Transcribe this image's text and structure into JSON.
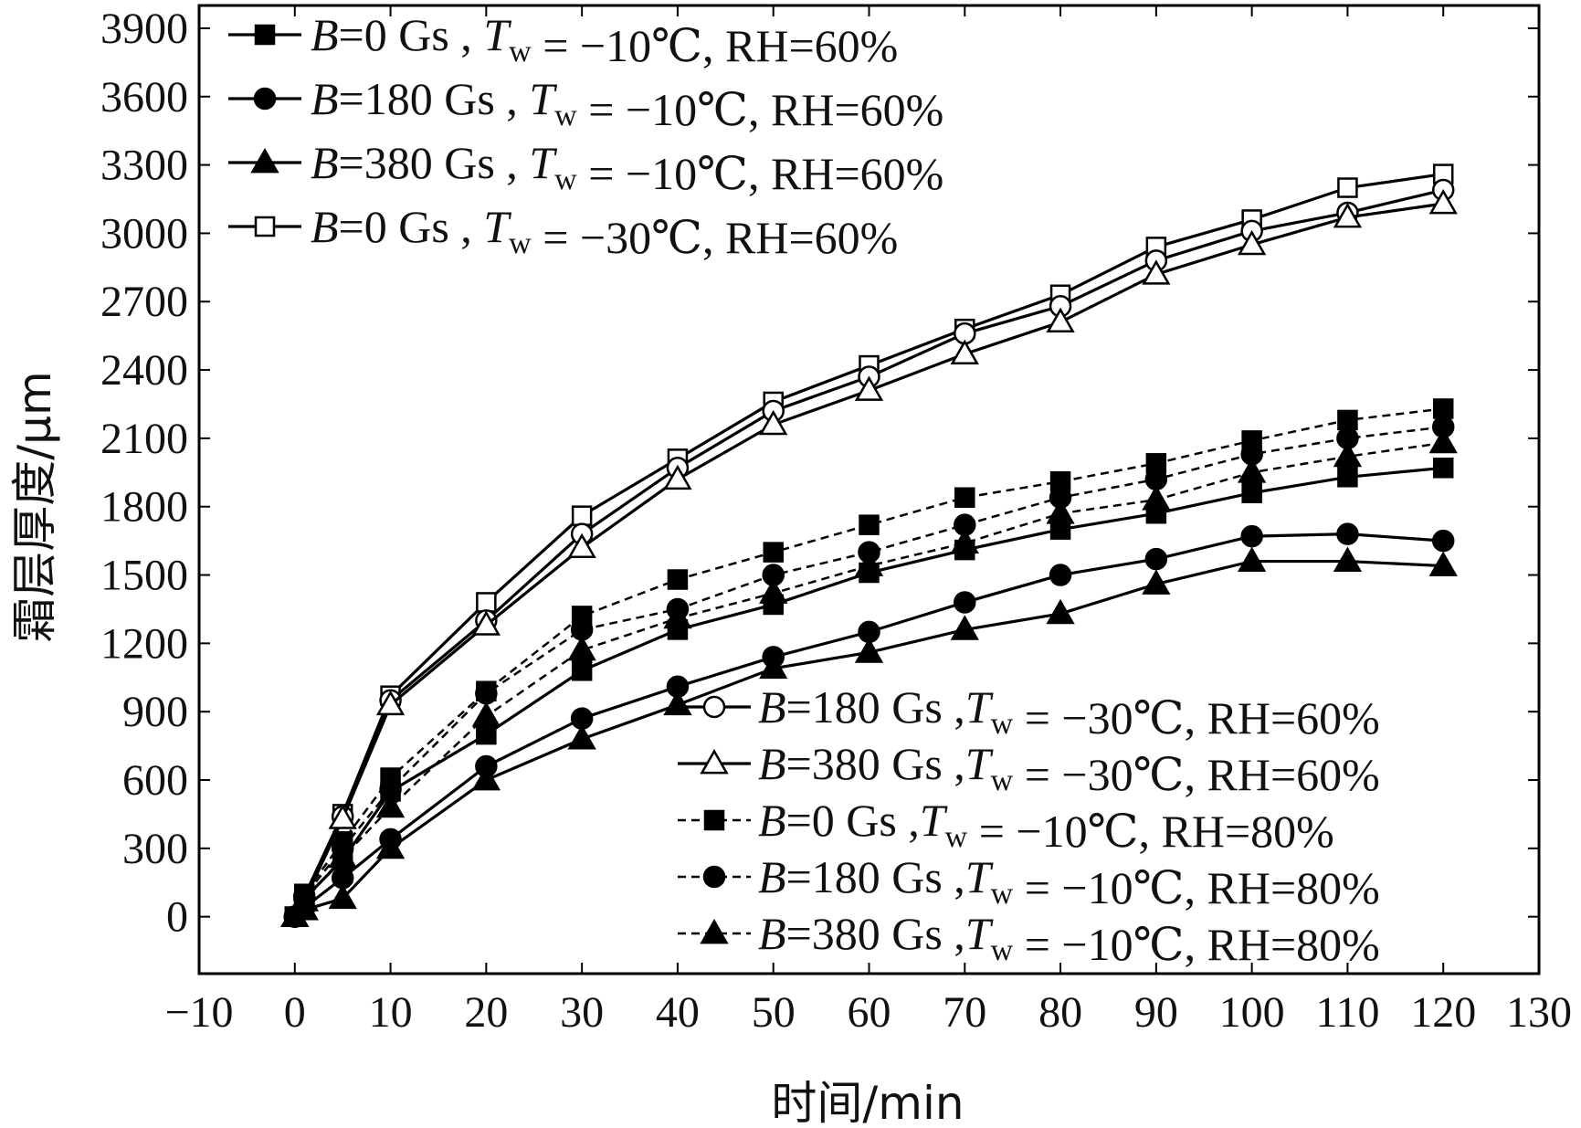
{
  "chart_data": {
    "type": "line",
    "title": "",
    "xlabel": "时间/min",
    "ylabel": "霜层厚度/μm",
    "xlim": [
      -10,
      130
    ],
    "ylim": [
      -250,
      4000
    ],
    "xticks": [
      -10,
      0,
      10,
      20,
      30,
      40,
      50,
      60,
      70,
      80,
      90,
      100,
      110,
      120,
      130
    ],
    "xtick_labels": [
      "−10",
      "0",
      "10",
      "20",
      "30",
      "40",
      "50",
      "60",
      "70",
      "80",
      "90",
      "100",
      "110",
      "120",
      "130"
    ],
    "yticks": [
      0,
      300,
      600,
      900,
      1200,
      1500,
      1800,
      2100,
      2400,
      2700,
      3000,
      3300,
      3600,
      3900
    ],
    "ytick_labels": [
      "0",
      "300",
      "600",
      "900",
      "1200",
      "1500",
      "1800",
      "2100",
      "2400",
      "2700",
      "3000",
      "3300",
      "3600",
      "3900"
    ],
    "legend_groups": [
      {
        "placement": "top-left",
        "series_indices": [
          0,
          1,
          2,
          3
        ]
      },
      {
        "placement": "bottom-right",
        "series_indices": [
          4,
          5,
          6,
          7,
          8
        ]
      }
    ],
    "series": [
      {
        "name": "B=0 Gs , Tw = −10℃, RH=60%",
        "legend": {
          "b": "B",
          "mid": "=0 Gs , ",
          "t": "T",
          "w": "w",
          "rest": " = −10℃, RH=60%"
        },
        "marker": "square",
        "fill": "filled",
        "dash": false,
        "x": [
          0,
          1,
          5,
          10,
          20,
          30,
          40,
          50,
          60,
          70,
          80,
          90,
          100,
          110,
          120
        ],
        "y": [
          0,
          80,
          250,
          550,
          800,
          1080,
          1260,
          1370,
          1510,
          1610,
          1700,
          1770,
          1860,
          1930,
          1970
        ]
      },
      {
        "name": "B=180 Gs , Tw = −10℃, RH=60%",
        "legend": {
          "b": "B",
          "mid": "=180 Gs , ",
          "t": "T",
          "w": "w",
          "rest": " = −10℃, RH=60%"
        },
        "marker": "circle",
        "fill": "filled",
        "dash": false,
        "x": [
          0,
          1,
          5,
          10,
          20,
          30,
          40,
          50,
          60,
          70,
          80,
          90,
          100,
          110,
          120
        ],
        "y": [
          0,
          40,
          170,
          340,
          660,
          870,
          1010,
          1140,
          1250,
          1380,
          1500,
          1570,
          1670,
          1680,
          1650
        ]
      },
      {
        "name": "B=380 Gs , Tw = −10℃, RH=60%",
        "legend": {
          "b": "B",
          "mid": "=380 Gs , ",
          "t": "T",
          "w": "w",
          "rest": " = −10℃, RH=60%"
        },
        "marker": "triangle",
        "fill": "filled",
        "dash": false,
        "x": [
          0,
          1,
          5,
          10,
          20,
          30,
          40,
          50,
          60,
          70,
          80,
          90,
          100,
          110,
          120
        ],
        "y": [
          0,
          30,
          80,
          300,
          600,
          780,
          930,
          1090,
          1160,
          1260,
          1330,
          1460,
          1560,
          1560,
          1540
        ]
      },
      {
        "name": "B=0 Gs , Tw = −30℃, RH=60%",
        "legend": {
          "b": "B",
          "mid": "=0 Gs , ",
          "t": "T",
          "w": "w",
          "rest": " = −30℃, RH=60%"
        },
        "marker": "square",
        "fill": "open",
        "dash": false,
        "x": [
          0,
          1,
          5,
          10,
          20,
          30,
          40,
          50,
          60,
          70,
          80,
          90,
          100,
          110,
          120
        ],
        "y": [
          0,
          90,
          450,
          970,
          1380,
          1760,
          2010,
          2260,
          2420,
          2580,
          2730,
          2940,
          3060,
          3200,
          3260
        ]
      },
      {
        "name": "B=180 Gs ,Tw = −30℃, RH=60%",
        "legend": {
          "b": "B",
          "mid": "=180 Gs ,",
          "t": "T",
          "w": "w",
          "rest": " = −30℃, RH=60%"
        },
        "marker": "circle",
        "fill": "open",
        "dash": false,
        "x": [
          0,
          1,
          5,
          10,
          20,
          30,
          40,
          50,
          60,
          70,
          80,
          90,
          100,
          110,
          120
        ],
        "y": [
          0,
          80,
          440,
          950,
          1300,
          1680,
          1970,
          2220,
          2370,
          2560,
          2680,
          2880,
          3010,
          3090,
          3190
        ]
      },
      {
        "name": "B=380 Gs ,Tw = −30℃, RH=60%",
        "legend": {
          "b": "B",
          "mid": "=380 Gs ,",
          "t": "T",
          "w": "w",
          "rest": " = −30℃, RH=60%"
        },
        "marker": "triangle",
        "fill": "open",
        "dash": false,
        "x": [
          0,
          1,
          5,
          10,
          20,
          30,
          40,
          50,
          60,
          70,
          80,
          90,
          100,
          110,
          120
        ],
        "y": [
          0,
          70,
          430,
          930,
          1280,
          1620,
          1920,
          2160,
          2310,
          2470,
          2610,
          2820,
          2950,
          3070,
          3130
        ]
      },
      {
        "name": "B=0 Gs ,Tw = −10℃, RH=80%",
        "legend": {
          "b": "B",
          "mid": "=0 Gs ,",
          "t": "T",
          "w": "w",
          "rest": " = −10℃, RH=80%"
        },
        "marker": "square",
        "fill": "filled",
        "dash": true,
        "x": [
          0,
          1,
          5,
          10,
          20,
          30,
          40,
          50,
          60,
          70,
          80,
          90,
          100,
          110,
          120
        ],
        "y": [
          0,
          100,
          330,
          610,
          990,
          1320,
          1480,
          1600,
          1720,
          1840,
          1910,
          1990,
          2090,
          2180,
          2230
        ]
      },
      {
        "name": "B=180 Gs ,Tw = −10℃, RH=80%",
        "legend": {
          "b": "B",
          "mid": "=180 Gs ,",
          "t": "T",
          "w": "w",
          "rest": " = −10℃, RH=80%"
        },
        "marker": "circle",
        "fill": "filled",
        "dash": true,
        "x": [
          0,
          1,
          5,
          10,
          20,
          30,
          40,
          50,
          60,
          70,
          80,
          90,
          100,
          110,
          120
        ],
        "y": [
          0,
          90,
          300,
          560,
          980,
          1260,
          1350,
          1500,
          1600,
          1720,
          1840,
          1920,
          2030,
          2100,
          2150
        ]
      },
      {
        "name": "B=380 Gs ,Tw = −10℃, RH=80%",
        "legend": {
          "b": "B",
          "mid": "=380 Gs ,",
          "t": "T",
          "w": "w",
          "rest": " = −10℃, RH=80%"
        },
        "marker": "triangle",
        "fill": "filled",
        "dash": true,
        "x": [
          0,
          1,
          5,
          10,
          20,
          30,
          40,
          50,
          60,
          70,
          80,
          90,
          100,
          110,
          120
        ],
        "y": [
          0,
          70,
          260,
          480,
          880,
          1170,
          1310,
          1420,
          1540,
          1640,
          1770,
          1830,
          1950,
          2020,
          2080
        ]
      }
    ]
  }
}
